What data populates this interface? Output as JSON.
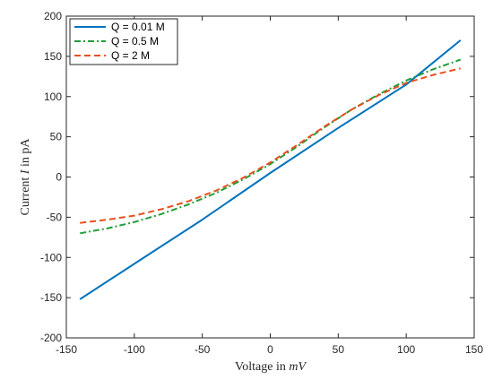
{
  "chart_data": {
    "type": "line",
    "xlabel": {
      "prefix": "Voltage in ",
      "unit": "mV"
    },
    "ylabel": {
      "prefix": "Current ",
      "symbol": "I",
      "suffix": " in pA"
    },
    "xlim": [
      -150,
      150
    ],
    "ylim": [
      -200,
      200
    ],
    "xticks": [
      -150,
      -100,
      -50,
      0,
      50,
      100,
      150
    ],
    "yticks": [
      -200,
      -150,
      -100,
      -50,
      0,
      50,
      100,
      150,
      200
    ],
    "grid": false,
    "legend_position": "top-left",
    "series": [
      {
        "name": "Q = 0.01 M",
        "color": "#0072BD",
        "dash": "solid",
        "x": [
          -140,
          -100,
          -50,
          0,
          50,
          100,
          140
        ],
        "y": [
          -152,
          -108,
          -53,
          5,
          61,
          115,
          170
        ]
      },
      {
        "name": "Q = 0.5 M",
        "color": "#1F9E3A",
        "dash": "dashdot",
        "x": [
          -140,
          -120,
          -100,
          -80,
          -60,
          -40,
          -20,
          0,
          20,
          40,
          60,
          80,
          100,
          120,
          140
        ],
        "y": [
          -70,
          -64,
          -56,
          -46,
          -34,
          -20,
          -3,
          16,
          38,
          62,
          84,
          103,
          120,
          134,
          146
        ]
      },
      {
        "name": "Q =  2 M",
        "color": "#E8501E",
        "dash": "dashed",
        "x": [
          -140,
          -120,
          -100,
          -80,
          -60,
          -40,
          -20,
          0,
          20,
          40,
          60,
          80,
          100,
          120,
          140
        ],
        "y": [
          -57,
          -53,
          -48,
          -40,
          -30,
          -17,
          -1,
          18,
          40,
          63,
          84,
          102,
          117,
          127,
          135
        ]
      }
    ]
  }
}
